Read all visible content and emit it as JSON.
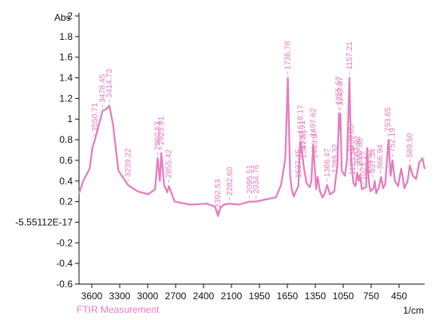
{
  "chart_data": {
    "type": "line",
    "title": "",
    "xlabel": "1/cm",
    "ylabel": "Abs",
    "caption": "FTIR Measurement",
    "x_reversed": true,
    "xlim": [
      3700,
      450
    ],
    "ylim": [
      -0.6,
      2.0
    ],
    "x_ticks": [
      "3600",
      "3300",
      "3000",
      "2700",
      "2400",
      "2100",
      "1950",
      "1650",
      "1350",
      "1050",
      "750",
      "450"
    ],
    "y_ticks": [
      "2",
      "1.8",
      "1.6",
      "1.4",
      "1.2",
      "1",
      "0.8",
      "0.6",
      "0.4",
      "0.2",
      "-5.55112E-17",
      "-0.2",
      "-0.4",
      "-0.6"
    ],
    "grid": false,
    "colors": {
      "series": "#e57cbd",
      "axis": "#111111",
      "caption": "#e57cbd"
    },
    "series": [
      {
        "x": [
          3700,
          3660,
          3600,
          3575,
          3550.71,
          3520,
          3478.45,
          3440,
          3414.73,
          3380,
          3330,
          3239.22,
          3150,
          3050,
          2985,
          2960.53,
          2940,
          2925.81,
          2900,
          2870,
          2855.42,
          2800,
          2650,
          2500,
          2420,
          2392.53,
          2370,
          2340,
          2282.6,
          2200,
          2095.51,
          2034.76,
          1950,
          1850,
          1800,
          1760,
          1736.78,
          1715,
          1700,
          1680,
          1660,
          1637.45,
          1625,
          1618.17,
          1605,
          1597.91,
          1587.31,
          1560,
          1530,
          1515,
          1497.62,
          1483.87,
          1470,
          1455,
          1435,
          1410,
          1390,
          1366.47,
          1340,
          1300,
          1289.32,
          1270,
          1255.57,
          1247,
          1242.07,
          1230,
          1200,
          1180,
          1157.21,
          1145,
          1139.85,
          1120,
          1100,
          1083.92,
          1070,
          1057.88,
          1040,
          1000,
          990,
          975,
          960,
          930,
          920,
          905,
          880,
          860,
          840,
          820,
          790,
          770,
          752.19,
          730,
          700,
          670,
          640,
          610,
          589.5,
          560,
          530,
          500,
          470,
          450
        ],
        "y": [
          0.28,
          0.4,
          0.52,
          0.72,
          0.8,
          0.92,
          1.08,
          1.1,
          1.13,
          0.95,
          0.5,
          0.36,
          0.3,
          0.27,
          0.32,
          0.62,
          0.4,
          0.67,
          0.36,
          0.29,
          0.35,
          0.2,
          0.17,
          0.18,
          0.15,
          0.06,
          0.14,
          0.17,
          0.18,
          0.17,
          0.2,
          0.2,
          0.22,
          0.24,
          0.36,
          0.62,
          1.4,
          0.45,
          0.32,
          0.25,
          0.3,
          0.35,
          0.72,
          0.78,
          0.7,
          0.63,
          0.54,
          0.38,
          0.34,
          0.4,
          0.75,
          0.54,
          0.32,
          0.44,
          0.3,
          0.24,
          0.28,
          0.36,
          0.27,
          0.3,
          0.4,
          0.55,
          1.06,
          0.9,
          1.05,
          0.5,
          0.45,
          0.6,
          1.4,
          0.8,
          0.6,
          0.38,
          0.35,
          0.48,
          0.4,
          0.46,
          0.32,
          0.34,
          0.72,
          0.39,
          0.3,
          0.33,
          0.4,
          0.28,
          0.34,
          0.44,
          0.33,
          0.37,
          0.8,
          0.45,
          0.6,
          0.4,
          0.35,
          0.52,
          0.33,
          0.4,
          0.55,
          0.45,
          0.42,
          0.58,
          0.62,
          0.52
        ]
      }
    ],
    "annotations": [
      {
        "label": "3550.71",
        "x": 3550.71,
        "y": 0.8
      },
      {
        "label": "3478.45",
        "x": 3478.45,
        "y": 1.08
      },
      {
        "label": "3414.73",
        "x": 3414.73,
        "y": 1.13
      },
      {
        "label": "3239.22",
        "x": 3239.22,
        "y": 0.36
      },
      {
        "label": "2960.53",
        "x": 2960.53,
        "y": 0.62
      },
      {
        "label": "2925.81",
        "x": 2925.81,
        "y": 0.67
      },
      {
        "label": "2855.42",
        "x": 2855.42,
        "y": 0.35
      },
      {
        "label": "2392.53",
        "x": 2392.53,
        "y": 0.06
      },
      {
        "label": "2282.60",
        "x": 2282.6,
        "y": 0.18
      },
      {
        "label": "2095.51",
        "x": 2095.51,
        "y": 0.2
      },
      {
        "label": "2034.76",
        "x": 2034.76,
        "y": 0.2
      },
      {
        "label": "1736.78",
        "x": 1736.78,
        "y": 1.4
      },
      {
        "label": "1637.45",
        "x": 1637.45,
        "y": 0.35
      },
      {
        "label": "1618.17",
        "x": 1618.17,
        "y": 0.78
      },
      {
        "label": "1597.91",
        "x": 1597.91,
        "y": 0.63
      },
      {
        "label": "1587.31",
        "x": 1587.31,
        "y": 0.54
      },
      {
        "label": "1497.62",
        "x": 1497.62,
        "y": 0.75
      },
      {
        "label": "1483.87",
        "x": 1483.87,
        "y": 0.54
      },
      {
        "label": "1366.47",
        "x": 1366.47,
        "y": 0.36
      },
      {
        "label": "1289.32",
        "x": 1289.32,
        "y": 0.4
      },
      {
        "label": "1255.57",
        "x": 1255.57,
        "y": 1.06
      },
      {
        "label": "1242.07",
        "x": 1242.07,
        "y": 1.05
      },
      {
        "label": "1157.21",
        "x": 1157.21,
        "y": 1.4
      },
      {
        "label": "1139.85",
        "x": 1139.85,
        "y": 0.6
      },
      {
        "label": "1125.39",
        "x": 1125.39,
        "y": 0.38
      },
      {
        "label": "1083.92",
        "x": 1083.92,
        "y": 0.48
      },
      {
        "label": "1057.88",
        "x": 1057.88,
        "y": 0.46
      },
      {
        "label": "1023.17",
        "x": 1023.17,
        "y": 0.33
      },
      {
        "label": "973.02",
        "x": 973.02,
        "y": 0.39
      },
      {
        "label": "937.34",
        "x": 937.34,
        "y": 0.4
      },
      {
        "label": "866.94",
        "x": 866.94,
        "y": 0.44
      },
      {
        "label": "793.65",
        "x": 793.65,
        "y": 0.8
      },
      {
        "label": "752.19",
        "x": 752.19,
        "y": 0.6
      },
      {
        "label": "589.50",
        "x": 589.5,
        "y": 0.55
      }
    ]
  }
}
